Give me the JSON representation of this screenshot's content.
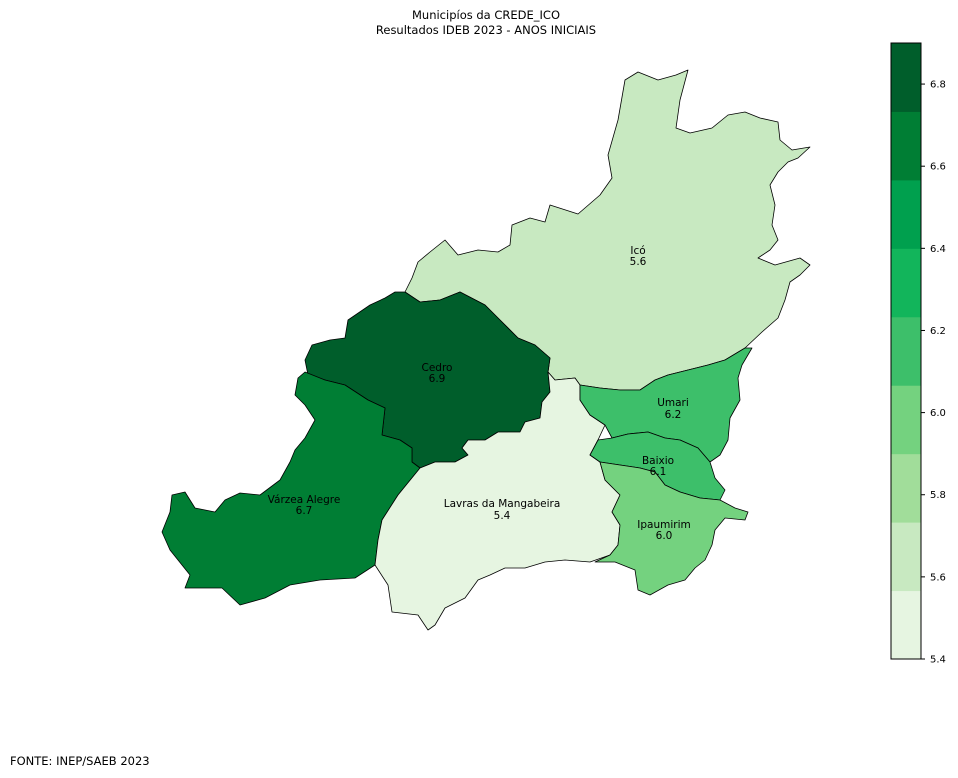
{
  "title": {
    "line1": "Municipíos da CREDE_ICO",
    "line2": "Resultados IDEB 2023 - ANOS INICIAIS"
  },
  "source": "FONTE: INEP/SAEB 2023",
  "municipalities": [
    {
      "id": "ico",
      "name": "Icó",
      "value": "5.6"
    },
    {
      "id": "cedro",
      "name": "Cedro",
      "value": "6.9"
    },
    {
      "id": "varzea",
      "name": "Várzea Alegre",
      "value": "6.7"
    },
    {
      "id": "lavras",
      "name": "Lavras da Mangabeira",
      "value": "5.4"
    },
    {
      "id": "umari",
      "name": "Umari",
      "value": "6.2"
    },
    {
      "id": "baixio",
      "name": "Baixio",
      "value": "6.1"
    },
    {
      "id": "ipaumirim",
      "name": "Ipaumirim",
      "value": "6.0"
    }
  ],
  "colorbar": {
    "min": 5.4,
    "max": 6.9,
    "ticks": [
      "5.4",
      "5.6",
      "5.8",
      "6.0",
      "6.2",
      "6.4",
      "6.6",
      "6.8"
    ],
    "bands": [
      "#e6f5e1",
      "#c8e9c1",
      "#a1dd9a",
      "#74d27f",
      "#3dbf6a",
      "#12b55b",
      "#00a04e",
      "#007e34",
      "#005e2b"
    ]
  },
  "colors": {
    "ico": "#c8e9c1",
    "cedro": "#005e2b",
    "varzea": "#007e34",
    "lavras": "#e6f5e1",
    "umari": "#3dbf6a",
    "baixio": "#3dbf6a",
    "ipaumirim": "#74d27f"
  }
}
